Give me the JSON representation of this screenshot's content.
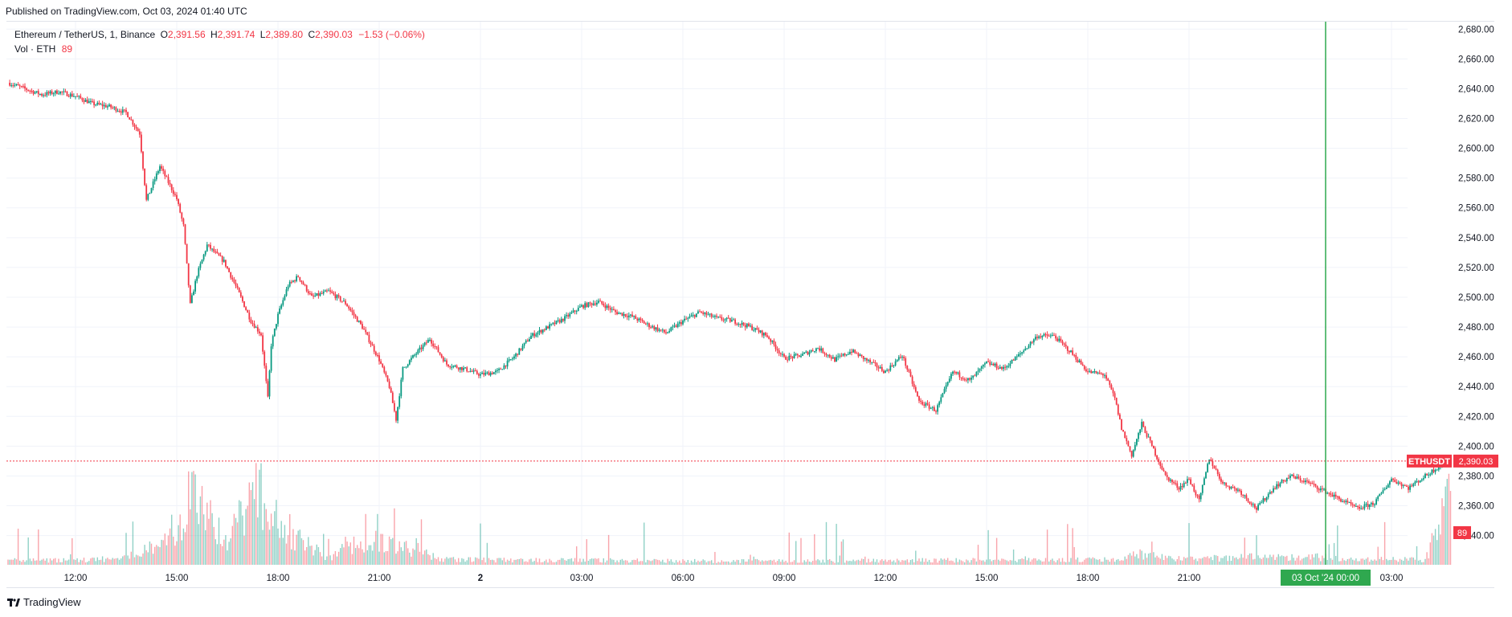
{
  "header": {
    "published": "Published on TradingView.com, Oct 03, 2024 01:40 UTC"
  },
  "legend": {
    "symbol": "Ethereum / TetherUS, 1, Binance",
    "open_label": "O",
    "open": "2,391.56",
    "high_label": "H",
    "high": "2,391.74",
    "low_label": "L",
    "low": "2,389.80",
    "close_label": "C",
    "close": "2,390.03",
    "change": "−1.53 (−0.06%)",
    "vol_label": "Vol · ETH",
    "vol_value": "89"
  },
  "price_tag": {
    "symbol": "ETHUSDT",
    "price": "2,390.03",
    "color": "#f23645"
  },
  "volume_tag": {
    "value": "89",
    "color": "#f23645"
  },
  "crosshair_label": {
    "date": "03 Oct '24",
    "time": "00:00",
    "color": "#2fa84f"
  },
  "footer": {
    "brand": "TradingView"
  },
  "colors": {
    "up": "#089981",
    "down": "#f23645",
    "grid": "#f0f3fa",
    "axis_text": "#131722",
    "crosshair": "#2fa84f"
  },
  "chart_data": {
    "type": "line",
    "style": "candlestick",
    "title": "Ethereum / TetherUS, 1, Binance",
    "interval": "1 minute",
    "x_tick_labels": [
      "12:00",
      "15:00",
      "18:00",
      "21:00",
      "2",
      "03:00",
      "06:00",
      "09:00",
      "12:00",
      "15:00",
      "18:00",
      "21:00",
      "03:00"
    ],
    "y_tick_labels": [
      "2,340.00",
      "2,360.00",
      "2,380.00",
      "2,400.00",
      "2,420.00",
      "2,440.00",
      "2,460.00",
      "2,480.00",
      "2,500.00",
      "2,520.00",
      "2,540.00",
      "2,560.00",
      "2,580.00",
      "2,600.00",
      "2,620.00",
      "2,640.00",
      "2,660.00",
      "2,680.00"
    ],
    "x_range_hours": [
      0,
      42.75
    ],
    "ylim": [
      2322,
      2685
    ],
    "grid": true,
    "last_price": 2390.03,
    "price_series": {
      "name": "ETHUSDT",
      "x_hours": [
        0,
        0.5,
        1,
        1.5,
        2,
        2.5,
        3,
        3.5,
        3.9,
        4.1,
        4.5,
        4.8,
        5.0,
        5.2,
        5.4,
        5.6,
        5.9,
        6.4,
        6.8,
        7.2,
        7.5,
        7.7,
        7.8,
        8.0,
        8.3,
        8.6,
        9.0,
        9.5,
        10.0,
        10.5,
        11.0,
        11.3,
        11.5,
        11.7,
        12.0,
        12.5,
        13.0,
        13.5,
        14.0,
        14.5,
        15.0,
        15.5,
        16.0,
        16.5,
        17.0,
        17.5,
        18.0,
        18.5,
        19.0,
        19.5,
        20.0,
        20.5,
        21.0,
        21.5,
        22.0,
        22.5,
        23.0,
        23.5,
        24.0,
        24.5,
        25.0,
        25.5,
        26.0,
        26.5,
        27.0,
        27.5,
        28.0,
        28.5,
        29.0,
        29.5,
        30.0,
        30.5,
        31.0,
        31.5,
        32.0,
        32.5,
        32.8,
        33.0,
        33.3,
        33.6,
        34.0,
        34.3,
        34.7,
        35.0,
        35.3,
        35.6,
        36.0,
        36.5,
        37.0,
        37.5,
        38.0,
        38.5,
        39.0,
        39.5,
        40.0,
        40.5,
        41.0,
        41.5,
        42.0,
        42.5,
        42.75
      ],
      "close": [
        2644,
        2640,
        2636,
        2638,
        2635,
        2630,
        2628,
        2624,
        2610,
        2565,
        2588,
        2575,
        2566,
        2548,
        2495,
        2515,
        2535,
        2524,
        2505,
        2484,
        2475,
        2432,
        2468,
        2488,
        2508,
        2514,
        2500,
        2504,
        2496,
        2480,
        2458,
        2440,
        2418,
        2452,
        2460,
        2472,
        2455,
        2452,
        2448,
        2450,
        2460,
        2474,
        2480,
        2486,
        2494,
        2497,
        2490,
        2487,
        2481,
        2476,
        2484,
        2490,
        2486,
        2484,
        2480,
        2474,
        2459,
        2461,
        2466,
        2458,
        2464,
        2457,
        2450,
        2461,
        2430,
        2424,
        2450,
        2444,
        2456,
        2452,
        2462,
        2474,
        2474,
        2463,
        2450,
        2448,
        2432,
        2412,
        2394,
        2415,
        2395,
        2380,
        2372,
        2378,
        2363,
        2392,
        2375,
        2370,
        2358,
        2372,
        2380,
        2376,
        2370,
        2364,
        2358,
        2362,
        2378,
        2372,
        2380,
        2388,
        2390.03
      ]
    },
    "volume_series": {
      "name": "Vol · ETH",
      "x_hours": [
        0,
        2,
        3.5,
        4.5,
        5.1,
        5.3,
        6.5,
        7.45,
        7.55,
        9.5,
        10.8,
        11.0,
        13,
        15,
        18,
        20,
        24,
        27,
        29,
        31,
        33,
        33.5,
        35,
        36.5,
        39,
        40,
        41,
        42,
        42.75
      ],
      "values": [
        6,
        6,
        9,
        30,
        55,
        95,
        30,
        120,
        60,
        10,
        40,
        30,
        7,
        6,
        6,
        5,
        5,
        6,
        6,
        6,
        7,
        15,
        8,
        10,
        10,
        6,
        8,
        6,
        89
      ]
    }
  }
}
